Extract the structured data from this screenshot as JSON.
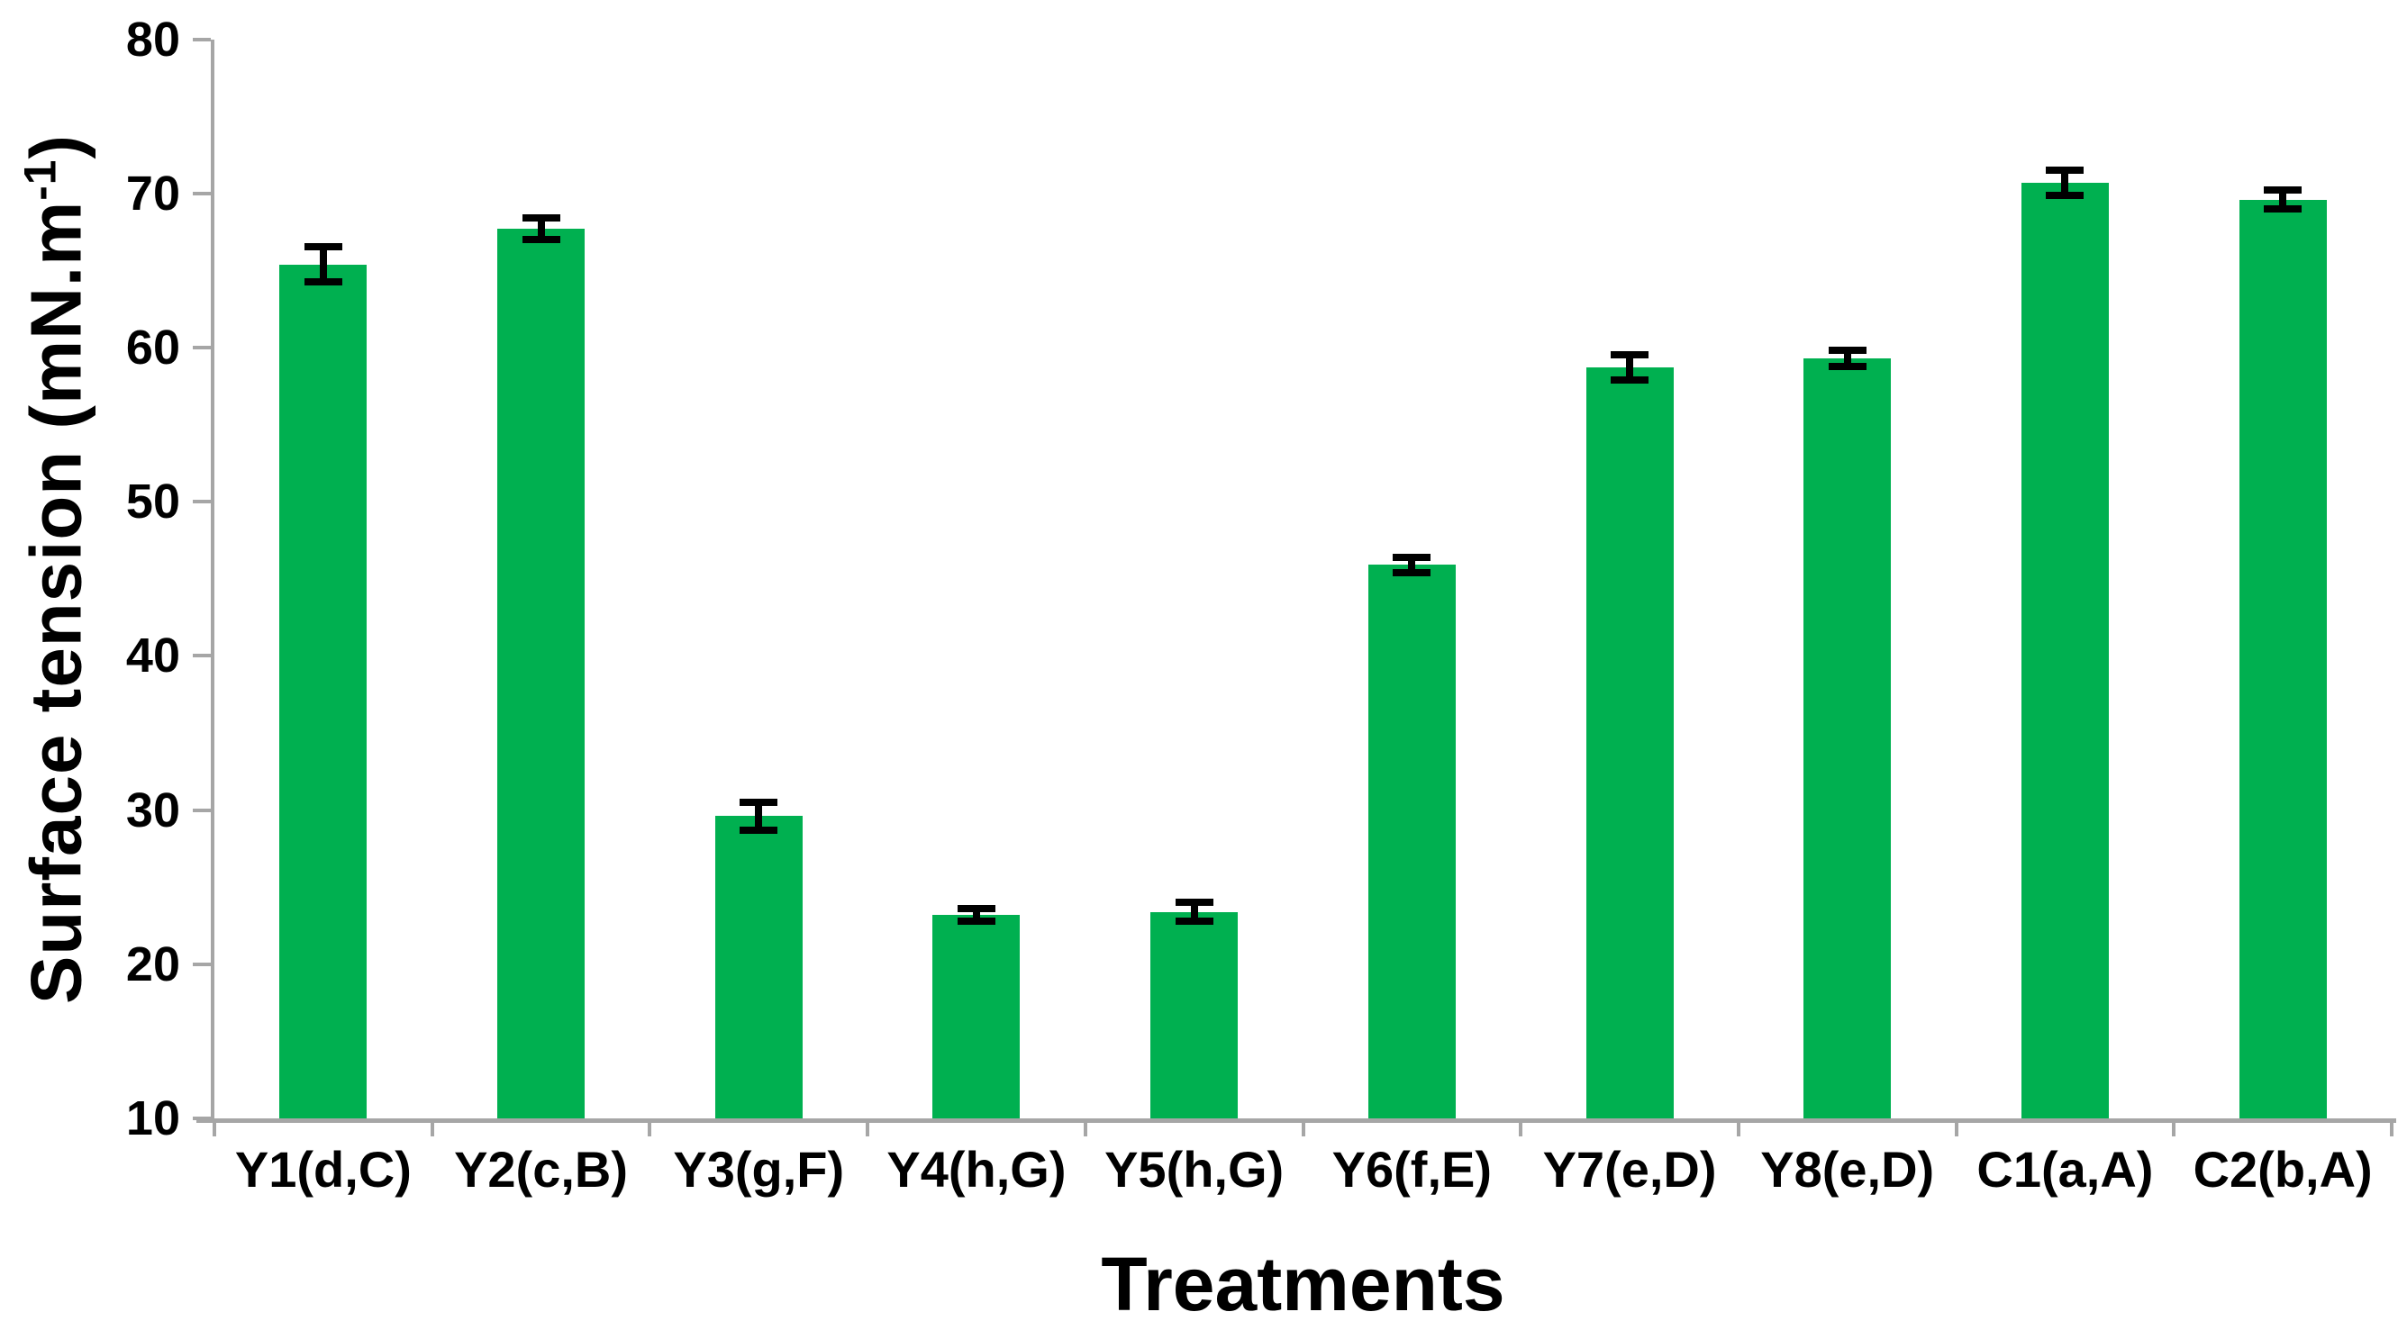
{
  "chart_data": {
    "type": "bar",
    "title": "",
    "xlabel": "Treatments",
    "ylabel": "Surface tension (mN.m⁻¹)",
    "ylabel_parts": {
      "base": "Surface tension (mN.m",
      "superscript": "-1",
      "close": ")"
    },
    "categories": [
      "Y1(d,C)",
      "Y2(c,B)",
      "Y3(g,F)",
      "Y4(h,G)",
      "Y5(h,G)",
      "Y6(f,E)",
      "Y7(e,D)",
      "Y8(e,D)",
      "C1(a,A)",
      "C2(b,A)"
    ],
    "values": [
      65.4,
      67.7,
      29.6,
      23.2,
      23.4,
      45.9,
      58.7,
      59.3,
      70.7,
      69.6
    ],
    "errors": [
      1.0,
      0.6,
      0.8,
      0.3,
      0.5,
      0.4,
      0.7,
      0.4,
      0.7,
      0.5
    ],
    "ylim": [
      10,
      80
    ],
    "yticks": [
      10,
      20,
      30,
      40,
      50,
      60,
      70,
      80
    ],
    "grid": false,
    "legend": null,
    "bar_color": "#00b050",
    "error_bar_color": "#000000",
    "axis_color": "#a6a6a6",
    "text_color": "#000000"
  }
}
